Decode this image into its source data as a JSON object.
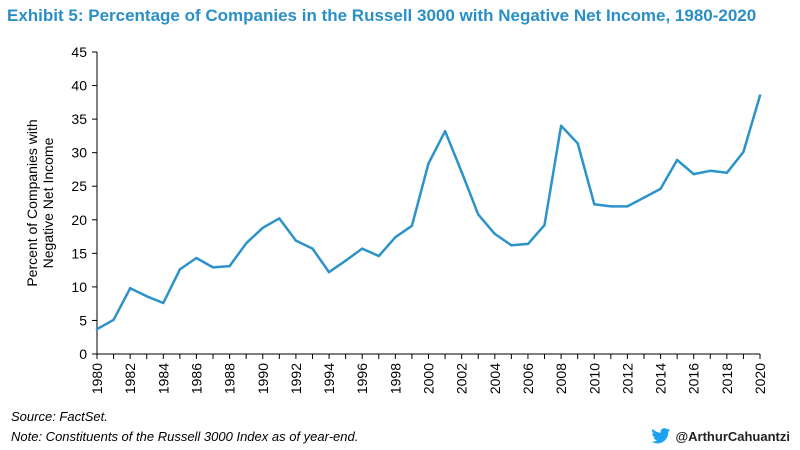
{
  "title": "Exhibit 5: Percentage of Companies in the Russell 3000 with Negative Net Income, 1980-2020",
  "footer": {
    "source": "Source: FactSet.",
    "note": "Note: Constituents of the Russell 3000 Index as of year-end.",
    "handle": "@ArthurCahuantzi",
    "handle_icon": "twitter-bird-icon"
  },
  "colors": {
    "title": "#2a8fc7",
    "line": "#2b93c9",
    "handle_icon": "#1da1f2"
  },
  "chart_data": {
    "type": "line",
    "title": "Exhibit 5: Percentage of Companies in the Russell 3000 with Negative Net Income, 1980-2020",
    "xlabel": "",
    "ylabel": "Percent of Companies with Negative Net Income",
    "ylabel_lines": [
      "Percent of Companies with",
      "Negative Net Income"
    ],
    "ylim": [
      0,
      45
    ],
    "yticks": [
      0,
      5,
      10,
      15,
      20,
      25,
      30,
      35,
      40,
      45
    ],
    "xlim": [
      1980,
      2020
    ],
    "xticks": [
      1980,
      1982,
      1984,
      1986,
      1988,
      1990,
      1992,
      1994,
      1996,
      1998,
      2000,
      2002,
      2004,
      2006,
      2008,
      2010,
      2012,
      2014,
      2016,
      2018,
      2020
    ],
    "grid": false,
    "legend": "none",
    "x": [
      1980,
      1981,
      1982,
      1983,
      1984,
      1985,
      1986,
      1987,
      1988,
      1989,
      1990,
      1991,
      1992,
      1993,
      1994,
      1995,
      1996,
      1997,
      1998,
      1999,
      2000,
      2001,
      2002,
      2003,
      2004,
      2005,
      2006,
      2007,
      2008,
      2009,
      2010,
      2011,
      2012,
      2013,
      2014,
      2015,
      2016,
      2017,
      2018,
      2019,
      2020
    ],
    "values": [
      3.7,
      5.1,
      9.8,
      8.6,
      7.6,
      12.6,
      14.3,
      12.9,
      13.1,
      16.5,
      18.8,
      20.2,
      16.9,
      15.7,
      12.2,
      13.9,
      15.7,
      14.6,
      17.4,
      19.1,
      28.4,
      33.2,
      27.1,
      20.8,
      17.9,
      16.2,
      16.4,
      19.2,
      34.0,
      31.4,
      22.3,
      22.0,
      22.0,
      23.3,
      24.6,
      28.9,
      26.8,
      27.3,
      27.0,
      30.1,
      38.5
    ]
  }
}
